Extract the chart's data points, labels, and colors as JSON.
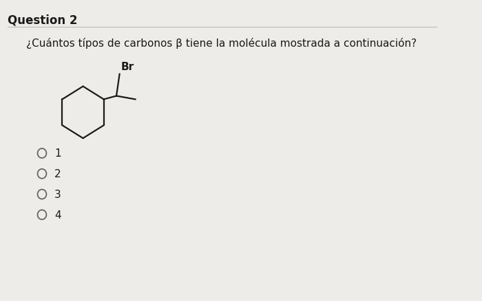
{
  "title": "Question 2",
  "question": "¿Cuántos típos de carbonos β tiene la molécula mostrada a continuación?",
  "options": [
    "1",
    "2",
    "3",
    "4"
  ],
  "bg_color": "#eeece8",
  "title_color": "#1a1a1a",
  "question_color": "#1a1a1a",
  "option_color": "#1a1a1a",
  "molecule_color": "#1a1a1a",
  "title_fontsize": 12,
  "question_fontsize": 11,
  "option_fontsize": 11,
  "line_color": "#bbbbbb"
}
